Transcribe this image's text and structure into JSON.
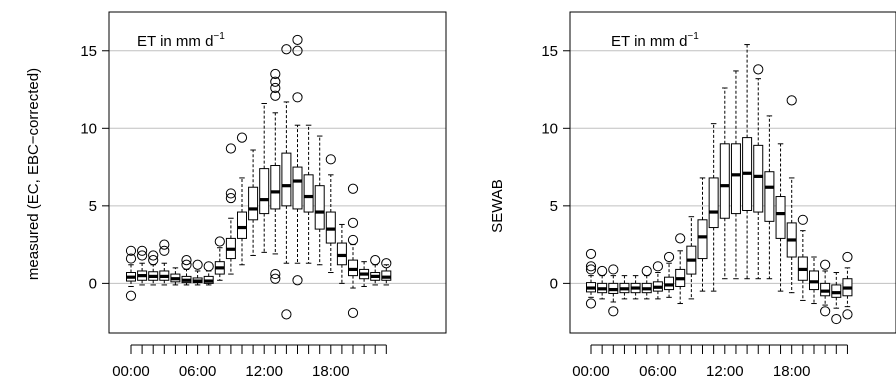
{
  "chart_data": [
    {
      "type": "box",
      "annotation": "ET in mm d",
      "annotation_superscript": "−1",
      "ylabel": "measured (EC, EBC−corrected)",
      "xlabel": "",
      "ylim": [
        -3.2,
        17.5
      ],
      "yticks": [
        0,
        5,
        10,
        15
      ],
      "xtick_labels": [
        "00:00",
        "06:00",
        "12:00",
        "18:00"
      ],
      "xtick_label_hours": [
        0,
        6,
        12,
        18
      ],
      "grid": "horizontal",
      "x_hours": [
        0,
        1,
        2,
        3,
        4,
        5,
        6,
        7,
        8,
        9,
        10,
        11,
        12,
        13,
        14,
        15,
        16,
        17,
        18,
        19,
        20,
        21,
        22,
        23
      ],
      "boxes": [
        {
          "wlo": -0.2,
          "q1": 0.15,
          "med": 0.4,
          "q3": 0.7,
          "whi": 1.2,
          "outliers": [
            1.6,
            2.1,
            -0.8
          ]
        },
        {
          "wlo": -0.1,
          "q1": 0.2,
          "med": 0.5,
          "q3": 0.8,
          "whi": 1.3,
          "outliers": [
            1.8,
            2.1
          ]
        },
        {
          "wlo": -0.1,
          "q1": 0.2,
          "med": 0.45,
          "q3": 0.75,
          "whi": 1.2,
          "outliers": [
            1.5,
            1.8
          ]
        },
        {
          "wlo": -0.1,
          "q1": 0.2,
          "med": 0.45,
          "q3": 0.8,
          "whi": 1.3,
          "outliers": [
            2.1,
            2.5
          ]
        },
        {
          "wlo": -0.1,
          "q1": 0.1,
          "med": 0.3,
          "q3": 0.6,
          "whi": 1.0,
          "outliers": []
        },
        {
          "wlo": -0.1,
          "q1": 0.05,
          "med": 0.2,
          "q3": 0.45,
          "whi": 0.9,
          "outliers": [
            1.2,
            1.5
          ]
        },
        {
          "wlo": -0.1,
          "q1": 0.05,
          "med": 0.15,
          "q3": 0.35,
          "whi": 0.8,
          "outliers": [
            1.2
          ]
        },
        {
          "wlo": -0.1,
          "q1": 0.0,
          "med": 0.15,
          "q3": 0.45,
          "whi": 0.8,
          "outliers": [
            1.1
          ]
        },
        {
          "wlo": 0.2,
          "q1": 0.6,
          "med": 1.0,
          "q3": 1.4,
          "whi": 2.3,
          "outliers": [
            2.7
          ]
        },
        {
          "wlo": 0.6,
          "q1": 1.6,
          "med": 2.2,
          "q3": 2.9,
          "whi": 4.2,
          "outliers": [
            5.5,
            5.8,
            8.7
          ]
        },
        {
          "wlo": 1.2,
          "q1": 2.9,
          "med": 3.6,
          "q3": 4.6,
          "whi": 6.8,
          "outliers": [
            9.4
          ]
        },
        {
          "wlo": 1.8,
          "q1": 4.1,
          "med": 4.8,
          "q3": 6.2,
          "whi": 8.6,
          "outliers": []
        },
        {
          "wlo": 2.0,
          "q1": 4.5,
          "med": 5.4,
          "q3": 7.4,
          "whi": 11.6,
          "outliers": []
        },
        {
          "wlo": 1.9,
          "q1": 4.8,
          "med": 5.9,
          "q3": 7.6,
          "whi": 11.0,
          "outliers": [
            12.1,
            12.6,
            13.0,
            13.5,
            0.6,
            0.3
          ]
        },
        {
          "wlo": 1.3,
          "q1": 5.0,
          "med": 6.3,
          "q3": 8.4,
          "whi": 11.7,
          "outliers": [
            15.1,
            -2.0
          ]
        },
        {
          "wlo": 1.3,
          "q1": 4.8,
          "med": 6.6,
          "q3": 7.5,
          "whi": 10.2,
          "outliers": [
            15.7,
            15.0,
            12.0,
            0.2
          ]
        },
        {
          "wlo": 1.3,
          "q1": 4.6,
          "med": 5.6,
          "q3": 7.0,
          "whi": 10.2,
          "outliers": []
        },
        {
          "wlo": 1.2,
          "q1": 3.5,
          "med": 4.6,
          "q3": 6.3,
          "whi": 9.5,
          "outliers": []
        },
        {
          "wlo": 0.7,
          "q1": 2.6,
          "med": 3.5,
          "q3": 4.6,
          "whi": 7.0,
          "outliers": [
            8.0
          ]
        },
        {
          "wlo": 0.0,
          "q1": 1.2,
          "med": 1.8,
          "q3": 2.6,
          "whi": 3.8,
          "outliers": []
        },
        {
          "wlo": -0.3,
          "q1": 0.5,
          "med": 0.9,
          "q3": 1.5,
          "whi": 2.5,
          "outliers": [
            6.1,
            3.9,
            2.8,
            -1.9
          ]
        },
        {
          "wlo": -0.2,
          "q1": 0.3,
          "med": 0.6,
          "q3": 0.9,
          "whi": 1.4,
          "outliers": []
        },
        {
          "wlo": -0.1,
          "q1": 0.2,
          "med": 0.45,
          "q3": 0.7,
          "whi": 1.2,
          "outliers": [
            1.5
          ]
        },
        {
          "wlo": -0.1,
          "q1": 0.2,
          "med": 0.4,
          "q3": 0.8,
          "whi": 1.2,
          "outliers": [
            1.3
          ]
        }
      ]
    },
    {
      "type": "box",
      "annotation": "ET in mm d",
      "annotation_superscript": "−1",
      "ylabel": "SEWAB",
      "xlabel": "",
      "ylim": [
        -3.2,
        17.5
      ],
      "yticks": [
        0,
        5,
        10,
        15
      ],
      "xtick_labels": [
        "00:00",
        "06:00",
        "12:00",
        "18:00"
      ],
      "xtick_label_hours": [
        0,
        6,
        12,
        18
      ],
      "grid": "horizontal",
      "x_hours": [
        0,
        1,
        2,
        3,
        4,
        5,
        6,
        7,
        8,
        9,
        10,
        11,
        12,
        13,
        14,
        15,
        16,
        17,
        18,
        19,
        20,
        21,
        22,
        23
      ],
      "boxes": [
        {
          "wlo": -0.9,
          "q1": -0.55,
          "med": -0.3,
          "q3": 0.05,
          "whi": 0.5,
          "outliers": [
            1.9,
            1.1,
            0.9,
            -1.3
          ]
        },
        {
          "wlo": -1.0,
          "q1": -0.6,
          "med": -0.35,
          "q3": 0.0,
          "whi": 0.5,
          "outliers": [
            0.8
          ]
        },
        {
          "wlo": -1.2,
          "q1": -0.65,
          "med": -0.4,
          "q3": 0.0,
          "whi": 0.5,
          "outliers": [
            0.9,
            -1.8
          ]
        },
        {
          "wlo": -1.0,
          "q1": -0.6,
          "med": -0.35,
          "q3": 0.0,
          "whi": 0.5,
          "outliers": []
        },
        {
          "wlo": -1.0,
          "q1": -0.6,
          "med": -0.3,
          "q3": 0.0,
          "whi": 0.5,
          "outliers": []
        },
        {
          "wlo": -1.0,
          "q1": -0.6,
          "med": -0.35,
          "q3": 0.0,
          "whi": 0.5,
          "outliers": [
            0.8
          ]
        },
        {
          "wlo": -1.0,
          "q1": -0.5,
          "med": -0.25,
          "q3": 0.1,
          "whi": 0.7,
          "outliers": [
            1.1
          ]
        },
        {
          "wlo": -0.9,
          "q1": -0.4,
          "med": -0.1,
          "q3": 0.4,
          "whi": 1.3,
          "outliers": [
            1.7
          ]
        },
        {
          "wlo": -1.3,
          "q1": -0.2,
          "med": 0.3,
          "q3": 0.9,
          "whi": 2.1,
          "outliers": [
            2.9
          ]
        },
        {
          "wlo": -1.0,
          "q1": 0.6,
          "med": 1.5,
          "q3": 2.4,
          "whi": 4.3,
          "outliers": []
        },
        {
          "wlo": -0.5,
          "q1": 1.6,
          "med": 3.0,
          "q3": 4.1,
          "whi": 6.8,
          "outliers": []
        },
        {
          "wlo": -0.5,
          "q1": 3.6,
          "med": 4.6,
          "q3": 6.8,
          "whi": 10.3,
          "outliers": []
        },
        {
          "wlo": 0.3,
          "q1": 4.2,
          "med": 6.3,
          "q3": 9.0,
          "whi": 12.6,
          "outliers": []
        },
        {
          "wlo": 0.3,
          "q1": 4.5,
          "med": 7.0,
          "q3": 9.0,
          "whi": 13.7,
          "outliers": []
        },
        {
          "wlo": 0.3,
          "q1": 4.7,
          "med": 7.1,
          "q3": 9.4,
          "whi": 15.4,
          "outliers": []
        },
        {
          "wlo": 0.3,
          "q1": 4.6,
          "med": 6.9,
          "q3": 8.9,
          "whi": 13.2,
          "outliers": [
            13.8
          ]
        },
        {
          "wlo": 0.3,
          "q1": 4.0,
          "med": 6.2,
          "q3": 7.2,
          "whi": 10.8,
          "outliers": []
        },
        {
          "wlo": -0.5,
          "q1": 2.9,
          "med": 4.5,
          "q3": 5.6,
          "whi": 9.0,
          "outliers": []
        },
        {
          "wlo": -0.6,
          "q1": 1.7,
          "med": 2.8,
          "q3": 3.9,
          "whi": 6.8,
          "outliers": [
            11.8
          ]
        },
        {
          "wlo": -1.1,
          "q1": 0.2,
          "med": 0.9,
          "q3": 1.7,
          "whi": 3.4,
          "outliers": [
            4.1
          ]
        },
        {
          "wlo": -1.3,
          "q1": -0.4,
          "med": 0.1,
          "q3": 0.8,
          "whi": 1.7,
          "outliers": []
        },
        {
          "wlo": -1.4,
          "q1": -0.8,
          "med": -0.5,
          "q3": 0.0,
          "whi": 0.8,
          "outliers": [
            1.2,
            -1.8
          ]
        },
        {
          "wlo": -1.6,
          "q1": -0.9,
          "med": -0.6,
          "q3": -0.1,
          "whi": 0.7,
          "outliers": [
            -2.3
          ]
        },
        {
          "wlo": -1.5,
          "q1": -0.8,
          "med": -0.3,
          "q3": 0.3,
          "whi": 1.0,
          "outliers": [
            1.7,
            -2.0
          ]
        }
      ]
    }
  ]
}
